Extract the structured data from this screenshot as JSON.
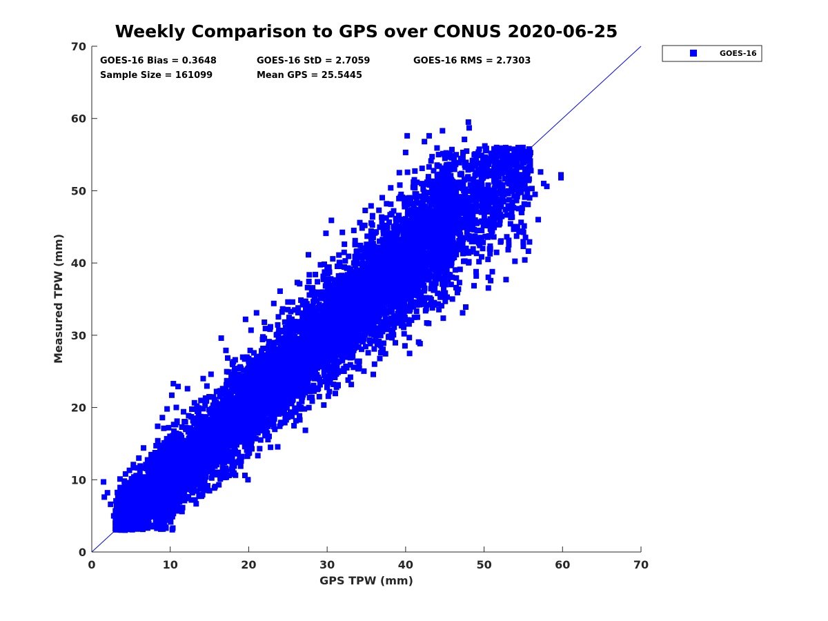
{
  "chart_data": {
    "type": "scatter",
    "title": "Weekly Comparison to GPS over CONUS 2020-06-25",
    "xlabel": "GPS TPW (mm)",
    "ylabel": "Measured TPW (mm)",
    "xlim": [
      0,
      70
    ],
    "ylim": [
      0,
      70
    ],
    "xticks": [
      "0",
      "10",
      "20",
      "30",
      "40",
      "50",
      "60",
      "70"
    ],
    "yticks": [
      "0",
      "10",
      "20",
      "30",
      "40",
      "50",
      "60",
      "70"
    ],
    "grid": false,
    "legend_position": "outside-top-right",
    "reference_line": {
      "name": "1:1 line",
      "x": [
        0,
        70
      ],
      "y": [
        0,
        70
      ]
    },
    "stats": {
      "bias": "GOES-16 Bias = 0.3648",
      "std": "GOES-16 StD = 2.7059",
      "rms": "GOES-16 RMS = 2.7303",
      "sample_size": "Sample Size = 161099",
      "mean_gps": "Mean GPS = 25.5445"
    },
    "series": [
      {
        "name": "GOES-16",
        "marker": "square",
        "color": "#0000ff",
        "sample_size": 161099,
        "bias": 0.3648,
        "std": 2.7059,
        "x_range": [
          1.5,
          60
        ],
        "points": [
          [
            1.5,
            9.7
          ],
          [
            1.6,
            7.6
          ],
          [
            2.0,
            8.2
          ],
          [
            2.4,
            6.6
          ],
          [
            2.8,
            5.0
          ],
          [
            3.0,
            4.0
          ],
          [
            3.2,
            3.2
          ],
          [
            3.6,
            10.1
          ],
          [
            4.0,
            3.6
          ],
          [
            4.3,
            10.8
          ],
          [
            4.8,
            11.3
          ],
          [
            5.3,
            12.1
          ],
          [
            6.0,
            13.0
          ],
          [
            6.6,
            14.4
          ],
          [
            7.3,
            4.8
          ],
          [
            8.4,
            17.4
          ],
          [
            9.0,
            18.6
          ],
          [
            9.6,
            19.8
          ],
          [
            10.2,
            21.7
          ],
          [
            10.4,
            23.3
          ],
          [
            11.0,
            22.9
          ],
          [
            11.5,
            5.6
          ],
          [
            12.2,
            22.6
          ],
          [
            12.7,
            7.2
          ],
          [
            13.4,
            20.2
          ],
          [
            14.2,
            24.0
          ],
          [
            14.5,
            21.3
          ],
          [
            15.2,
            24.6
          ],
          [
            16.5,
            29.6
          ],
          [
            16.2,
            9.3
          ],
          [
            17.1,
            27.9
          ],
          [
            17.5,
            10.6
          ],
          [
            18.2,
            25.2
          ],
          [
            19.6,
            32.2
          ],
          [
            20.3,
            30.7
          ],
          [
            21.0,
            33.1
          ],
          [
            21.4,
            14.3
          ],
          [
            22.0,
            31.8
          ],
          [
            22.6,
            16.0
          ],
          [
            23.2,
            34.4
          ],
          [
            24.0,
            36.1
          ],
          [
            24.6,
            17.9
          ],
          [
            25.0,
            34.6
          ],
          [
            26.2,
            37.3
          ],
          [
            27.1,
            19.8
          ],
          [
            27.5,
            36.6
          ],
          [
            28.5,
            38.4
          ],
          [
            29.0,
            21.5
          ],
          [
            30.0,
            39.4
          ],
          [
            30.8,
            23.2
          ],
          [
            31.5,
            41.1
          ],
          [
            32.2,
            42.6
          ],
          [
            32.5,
            25.5
          ],
          [
            33.4,
            44.5
          ],
          [
            34.1,
            26.4
          ],
          [
            34.8,
            45.2
          ],
          [
            35.6,
            47.9
          ],
          [
            36.0,
            28.1
          ],
          [
            36.6,
            47.3
          ],
          [
            37.2,
            28.9
          ],
          [
            38.1,
            50.4
          ],
          [
            38.2,
            30.6
          ],
          [
            39.2,
            52.5
          ],
          [
            39.8,
            33.5
          ],
          [
            40.0,
            55.3
          ],
          [
            40.2,
            57.6
          ],
          [
            41.0,
            51.2
          ],
          [
            41.5,
            32.5
          ],
          [
            42.1,
            53.1
          ],
          [
            42.4,
            56.8
          ],
          [
            43.0,
            57.6
          ],
          [
            43.6,
            34.2
          ],
          [
            44.2,
            55.0
          ],
          [
            44.7,
            58.3
          ],
          [
            45.1,
            37.0
          ],
          [
            45.9,
            55.7
          ],
          [
            46.6,
            35.9
          ],
          [
            47.3,
            54.6
          ],
          [
            47.5,
            57.1
          ],
          [
            48.0,
            59.5
          ],
          [
            48.1,
            58.7
          ],
          [
            49.0,
            38.2
          ],
          [
            49.6,
            53.8
          ],
          [
            50.1,
            56.2
          ],
          [
            50.5,
            40.5
          ],
          [
            51.3,
            55.1
          ],
          [
            52.1,
            42.9
          ],
          [
            52.8,
            37.7
          ],
          [
            53.4,
            46.3
          ],
          [
            54.2,
            53.5
          ],
          [
            55.0,
            42.3
          ],
          [
            55.6,
            48.1
          ],
          [
            56.1,
            50.3
          ],
          [
            56.9,
            46.0
          ],
          [
            57.2,
            52.6
          ],
          [
            57.6,
            51.0
          ],
          [
            59.8,
            52.2
          ],
          [
            59.8,
            51.8
          ],
          [
            56.5,
            49.5
          ],
          [
            58.0,
            50.6
          ]
        ]
      }
    ]
  }
}
